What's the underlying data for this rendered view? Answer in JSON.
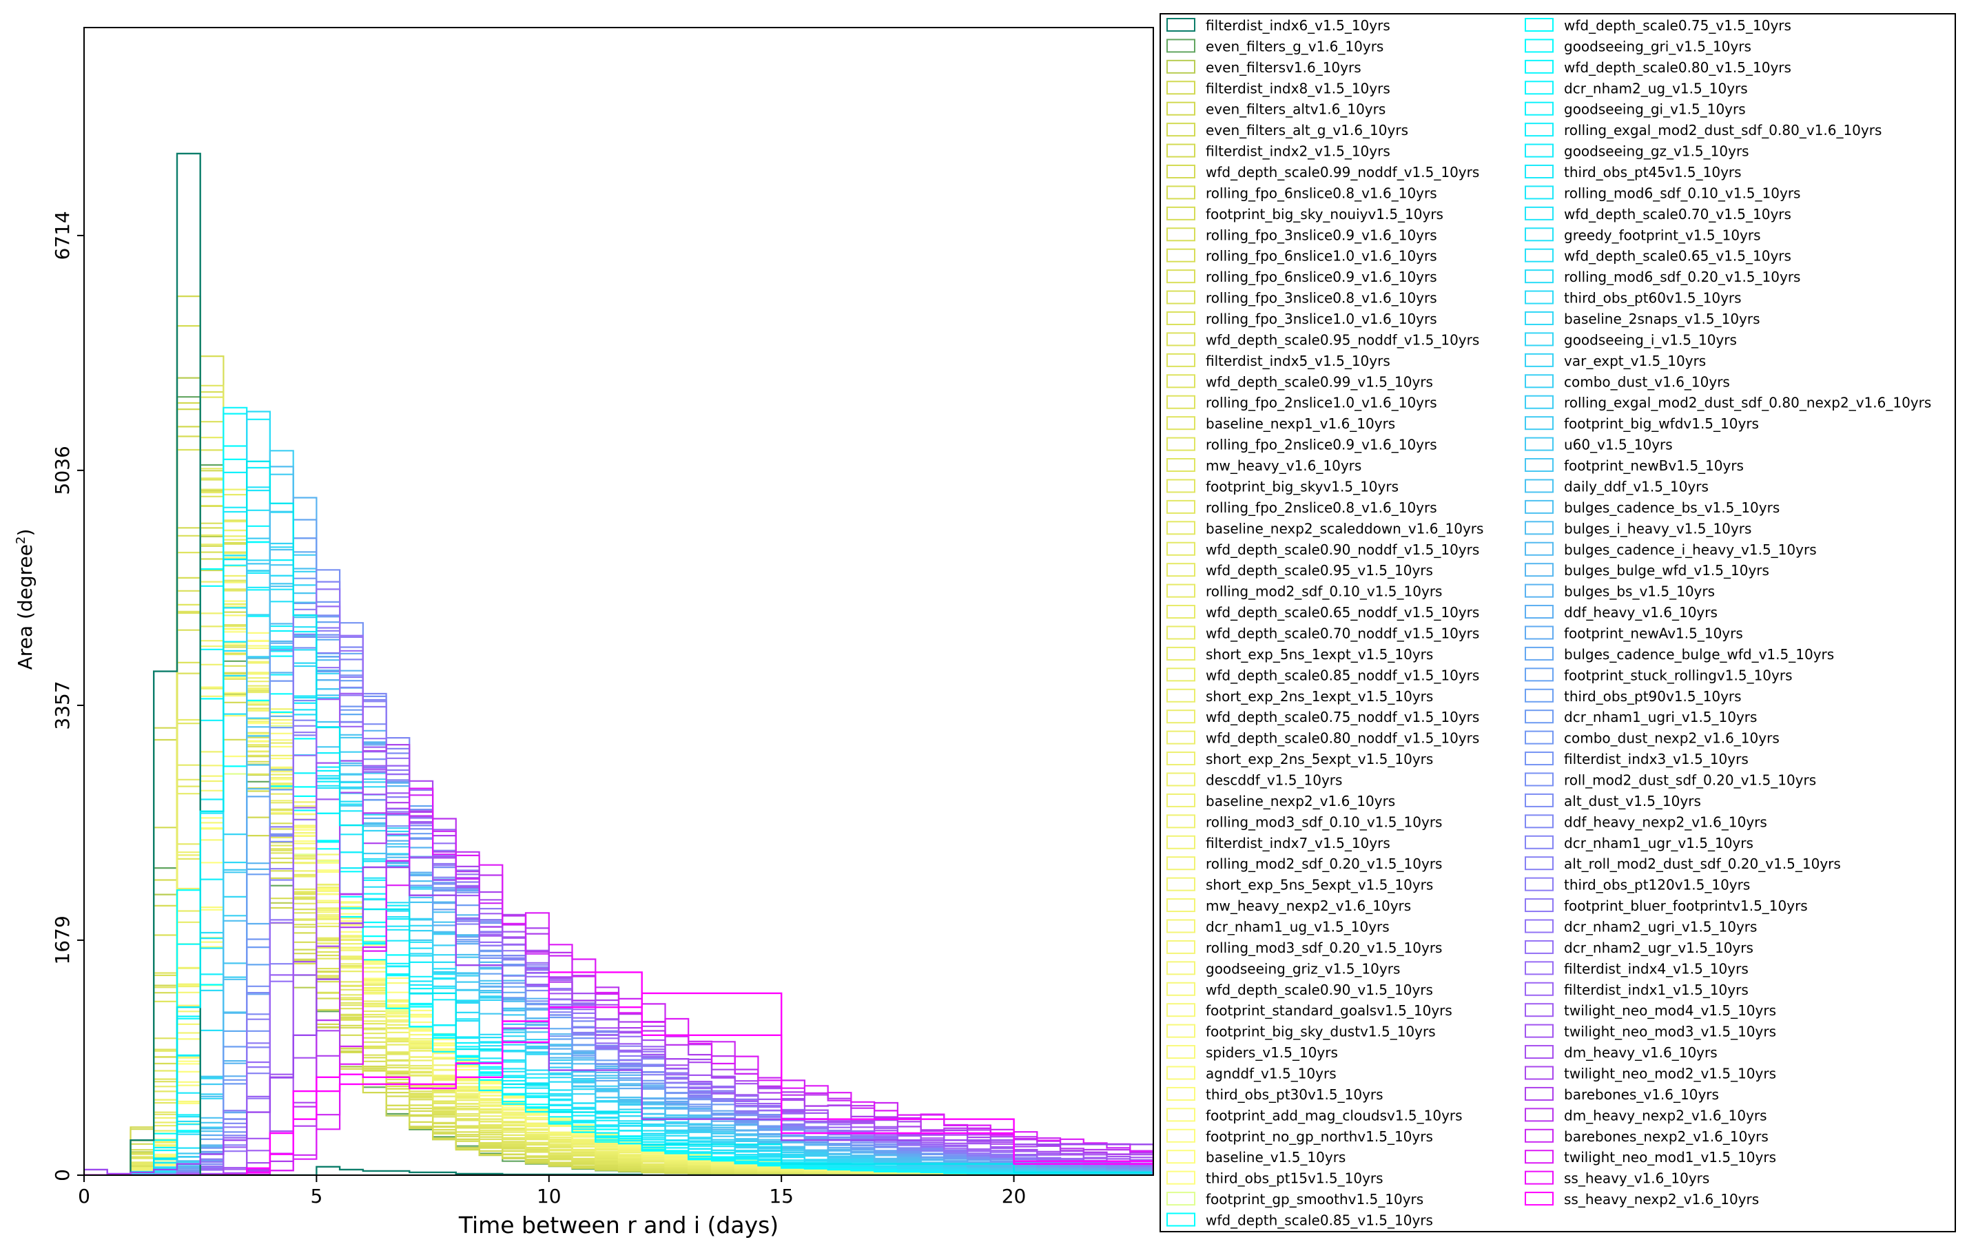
{
  "chart_data": {
    "type": "step-histogram",
    "xlabel": "Time between r and i (days)",
    "ylabel_main": "Area (degree",
    "ylabel_sup": "2",
    "ylabel_end": ")",
    "xlim": [
      0,
      23
    ],
    "ylim": [
      0,
      8200
    ],
    "xticks": [
      0,
      5,
      10,
      15,
      20
    ],
    "yticks": [
      0,
      1679,
      3357,
      5036,
      6714
    ],
    "grid": false,
    "legend_placement": "right, outside plot, two columns",
    "series_names": [
      "filterdist_indx6_v1.5_10yrs",
      "even_filters_g_v1.6_10yrs",
      "even_filtersv1.6_10yrs",
      "filterdist_indx8_v1.5_10yrs",
      "even_filters_altv1.6_10yrs",
      "even_filters_alt_g_v1.6_10yrs",
      "filterdist_indx2_v1.5_10yrs",
      "wfd_depth_scale0.99_noddf_v1.5_10yrs",
      "rolling_fpo_6nslice0.8_v1.6_10yrs",
      "footprint_big_sky_nouiyv1.5_10yrs",
      "rolling_fpo_3nslice0.9_v1.6_10yrs",
      "rolling_fpo_6nslice1.0_v1.6_10yrs",
      "rolling_fpo_6nslice0.9_v1.6_10yrs",
      "rolling_fpo_3nslice0.8_v1.6_10yrs",
      "rolling_fpo_3nslice1.0_v1.6_10yrs",
      "wfd_depth_scale0.95_noddf_v1.5_10yrs",
      "filterdist_indx5_v1.5_10yrs",
      "wfd_depth_scale0.99_v1.5_10yrs",
      "rolling_fpo_2nslice1.0_v1.6_10yrs",
      "baseline_nexp1_v1.6_10yrs",
      "rolling_fpo_2nslice0.9_v1.6_10yrs",
      "mw_heavy_v1.6_10yrs",
      "footprint_big_skyv1.5_10yrs",
      "rolling_fpo_2nslice0.8_v1.6_10yrs",
      "baseline_nexp2_scaleddown_v1.6_10yrs",
      "wfd_depth_scale0.90_noddf_v1.5_10yrs",
      "wfd_depth_scale0.95_v1.5_10yrs",
      "rolling_mod2_sdf_0.10_v1.5_10yrs",
      "wfd_depth_scale0.65_noddf_v1.5_10yrs",
      "wfd_depth_scale0.70_noddf_v1.5_10yrs",
      "short_exp_5ns_1expt_v1.5_10yrs",
      "wfd_depth_scale0.85_noddf_v1.5_10yrs",
      "short_exp_2ns_1expt_v1.5_10yrs",
      "wfd_depth_scale0.75_noddf_v1.5_10yrs",
      "wfd_depth_scale0.80_noddf_v1.5_10yrs",
      "short_exp_2ns_5expt_v1.5_10yrs",
      "descddf_v1.5_10yrs",
      "baseline_nexp2_v1.6_10yrs",
      "rolling_mod3_sdf_0.10_v1.5_10yrs",
      "filterdist_indx7_v1.5_10yrs",
      "rolling_mod2_sdf_0.20_v1.5_10yrs",
      "short_exp_5ns_5expt_v1.5_10yrs",
      "mw_heavy_nexp2_v1.6_10yrs",
      "dcr_nham1_ug_v1.5_10yrs",
      "rolling_mod3_sdf_0.20_v1.5_10yrs",
      "goodseeing_griz_v1.5_10yrs",
      "wfd_depth_scale0.90_v1.5_10yrs",
      "footprint_standard_goalsv1.5_10yrs",
      "footprint_big_sky_dustv1.5_10yrs",
      "spiders_v1.5_10yrs",
      "agnddf_v1.5_10yrs",
      "third_obs_pt30v1.5_10yrs",
      "footprint_add_mag_cloudsv1.5_10yrs",
      "footprint_no_gp_northv1.5_10yrs",
      "baseline_v1.5_10yrs",
      "third_obs_pt15v1.5_10yrs",
      "footprint_gp_smoothv1.5_10yrs",
      "wfd_depth_scale0.85_v1.5_10yrs",
      "wfd_depth_scale0.75_v1.5_10yrs",
      "goodseeing_gri_v1.5_10yrs",
      "wfd_depth_scale0.80_v1.5_10yrs",
      "dcr_nham2_ug_v1.5_10yrs",
      "goodseeing_gi_v1.5_10yrs",
      "rolling_exgal_mod2_dust_sdf_0.80_v1.6_10yrs",
      "goodseeing_gz_v1.5_10yrs",
      "third_obs_pt45v1.5_10yrs",
      "rolling_mod6_sdf_0.10_v1.5_10yrs",
      "wfd_depth_scale0.70_v1.5_10yrs",
      "greedy_footprint_v1.5_10yrs",
      "wfd_depth_scale0.65_v1.5_10yrs",
      "rolling_mod6_sdf_0.20_v1.5_10yrs",
      "third_obs_pt60v1.5_10yrs",
      "baseline_2snaps_v1.5_10yrs",
      "goodseeing_i_v1.5_10yrs",
      "var_expt_v1.5_10yrs",
      "combo_dust_v1.6_10yrs",
      "rolling_exgal_mod2_dust_sdf_0.80_nexp2_v1.6_10yrs",
      "footprint_big_wfdv1.5_10yrs",
      "u60_v1.5_10yrs",
      "footprint_newBv1.5_10yrs",
      "daily_ddf_v1.5_10yrs",
      "bulges_cadence_bs_v1.5_10yrs",
      "bulges_i_heavy_v1.5_10yrs",
      "bulges_cadence_i_heavy_v1.5_10yrs",
      "bulges_bulge_wfd_v1.5_10yrs",
      "bulges_bs_v1.5_10yrs",
      "ddf_heavy_v1.6_10yrs",
      "footprint_newAv1.5_10yrs",
      "bulges_cadence_bulge_wfd_v1.5_10yrs",
      "footprint_stuck_rollingv1.5_10yrs",
      "third_obs_pt90v1.5_10yrs",
      "dcr_nham1_ugri_v1.5_10yrs",
      "combo_dust_nexp2_v1.6_10yrs",
      "filterdist_indx3_v1.5_10yrs",
      "roll_mod2_dust_sdf_0.20_v1.5_10yrs",
      "alt_dust_v1.5_10yrs",
      "ddf_heavy_nexp2_v1.6_10yrs",
      "dcr_nham1_ugr_v1.5_10yrs",
      "alt_roll_mod2_dust_sdf_0.20_v1.5_10yrs",
      "third_obs_pt120v1.5_10yrs",
      "footprint_bluer_footprintv1.5_10yrs",
      "dcr_nham2_ugri_v1.5_10yrs",
      "dcr_nham2_ugr_v1.5_10yrs",
      "filterdist_indx4_v1.5_10yrs",
      "filterdist_indx1_v1.5_10yrs",
      "twilight_neo_mod4_v1.5_10yrs",
      "twilight_neo_mod3_v1.5_10yrs",
      "dm_heavy_v1.6_10yrs",
      "twilight_neo_mod2_v1.5_10yrs",
      "barebones_v1.6_10yrs",
      "dm_heavy_nexp2_v1.6_10yrs",
      "barebones_nexp2_v1.6_10yrs",
      "twilight_neo_mod1_v1.5_10yrs",
      "ss_heavy_v1.6_10yrs",
      "ss_heavy_nexp2_v1.6_10yrs"
    ],
    "bin_width_days": 0.5,
    "representative_series": [
      {
        "name": "filterdist_indx6_v1.5_10yrs",
        "color": "#0b7d6a",
        "x": [
          0,
          0.5,
          1,
          1.5,
          2,
          2.5,
          3,
          3.5,
          4,
          4.5,
          5,
          5.5,
          6,
          7,
          8,
          9,
          10,
          12,
          15,
          20,
          23
        ],
        "values": [
          0,
          0,
          250,
          3600,
          7300,
          0,
          0,
          0,
          0,
          0,
          60,
          40,
          30,
          20,
          10,
          5,
          5,
          0,
          0,
          0,
          0
        ]
      },
      {
        "name": "wfd_depth_scale0.65_v1.5_10yrs",
        "color": "#00e6f0",
        "x": [
          0,
          0.5,
          1,
          1.5,
          2,
          2.5,
          3,
          3.5,
          4,
          4.5,
          5,
          5.5,
          6,
          7,
          8,
          9,
          10,
          12,
          15,
          20,
          23
        ],
        "values": [
          0,
          0,
          0,
          120,
          1200,
          2600,
          4400,
          5100,
          4800,
          4000,
          3200,
          2500,
          1900,
          1300,
          900,
          650,
          450,
          220,
          80,
          20,
          10
        ]
      },
      {
        "name": "twilight_neo_mod1_v1.5_10yrs",
        "color": "#9a46ee",
        "x": [
          0,
          0.5,
          1,
          1.5,
          2,
          2.5,
          3,
          3.5,
          4,
          4.5,
          5,
          5.5,
          6,
          7,
          8,
          9,
          10,
          12,
          15,
          20,
          23
        ],
        "values": [
          40,
          10,
          20,
          40,
          80,
          150,
          250,
          450,
          700,
          1000,
          1400,
          1800,
          2200,
          2000,
          1500,
          1050,
          750,
          400,
          250,
          220,
          180
        ]
      },
      {
        "name": "ss_heavy_v1.6_10yrs",
        "color": "#ff00ff",
        "x": [
          0,
          0.5,
          1,
          1.5,
          2,
          2.5,
          3,
          3.5,
          4,
          4.5,
          5,
          5.5,
          6,
          7,
          8,
          9,
          10,
          12,
          15,
          20,
          23
        ],
        "values": [
          0,
          0,
          0,
          0,
          0,
          0,
          0,
          50,
          300,
          600,
          700,
          720,
          700,
          650,
          800,
          1100,
          1450,
          1000,
          300,
          80,
          30
        ]
      },
      {
        "name": "ss_heavy_nexp2_v1.6_10yrs",
        "color": "#ff00ff",
        "x": [
          0,
          0.5,
          1,
          1.5,
          2,
          2.5,
          3,
          3.5,
          4,
          4.5,
          5,
          5.5,
          6,
          7,
          8,
          9,
          10,
          12,
          15,
          20,
          23
        ],
        "values": [
          0,
          0,
          0,
          0,
          0,
          0,
          0,
          20,
          150,
          400,
          600,
          650,
          650,
          620,
          700,
          950,
          1200,
          1300,
          400,
          100,
          40
        ]
      }
    ]
  }
}
